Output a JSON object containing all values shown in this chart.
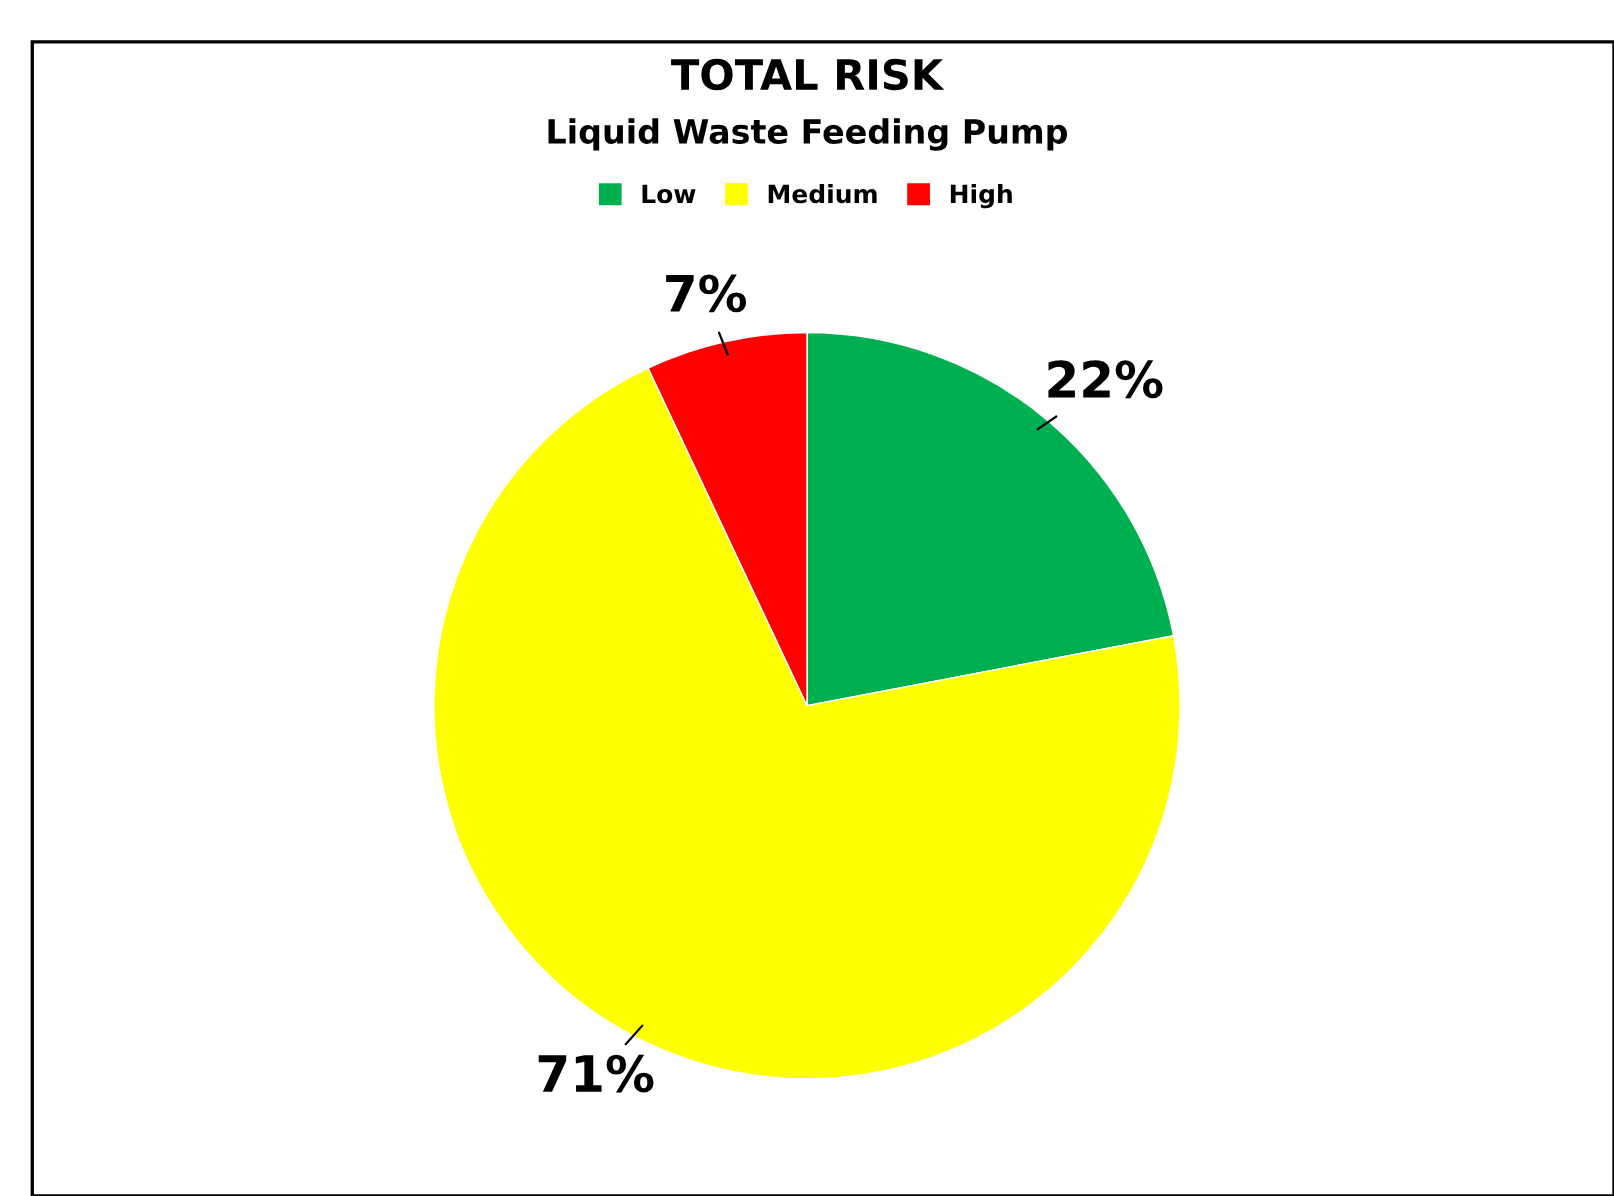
{
  "chart_data": {
    "type": "pie",
    "title": "TOTAL RISK",
    "subtitle": "Liquid Waste Feeding Pump",
    "categories": [
      "Low",
      "Medium",
      "High"
    ],
    "values": [
      22,
      71,
      7
    ],
    "colors": [
      "#00b050",
      "#ffff00",
      "#ff0000"
    ],
    "value_labels": [
      "22%",
      "71%",
      "7%"
    ],
    "legend": "top"
  }
}
